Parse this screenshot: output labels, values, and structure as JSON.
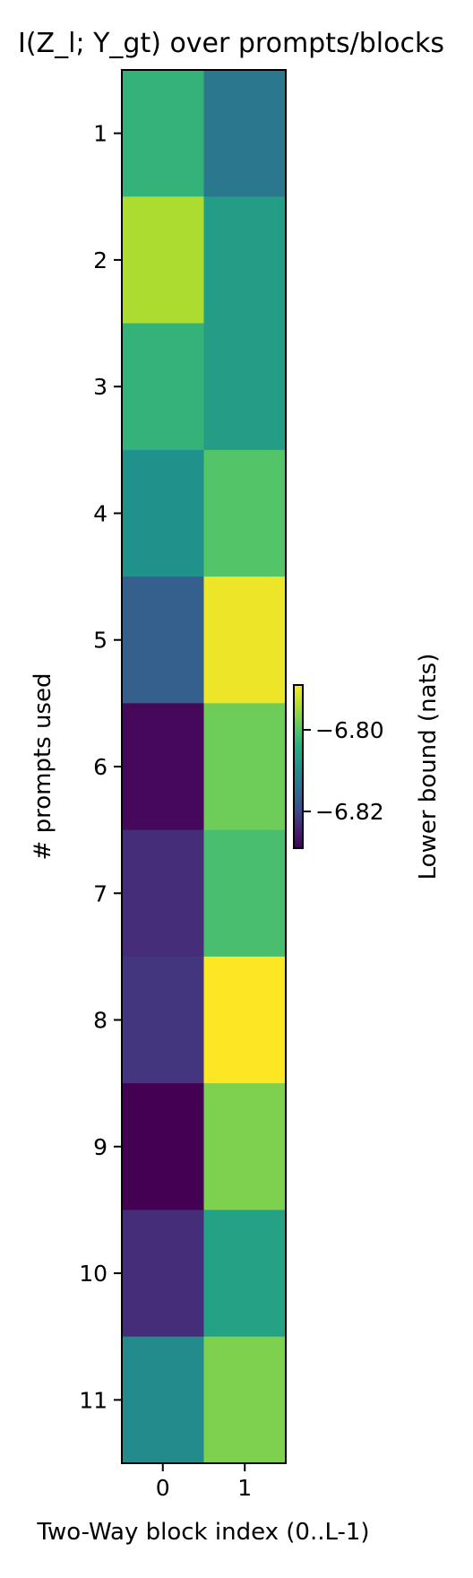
{
  "chart_data": {
    "type": "heatmap",
    "title": "I(Z_l; Y_gt) over prompts/blocks",
    "xlabel": "Two-Way block index (0..L-1)",
    "ylabel": "# prompts used",
    "x_categories": [
      "0",
      "1"
    ],
    "y_categories": [
      "1",
      "2",
      "3",
      "4",
      "5",
      "6",
      "7",
      "8",
      "9",
      "10",
      "11"
    ],
    "values": [
      [
        -6.803,
        -6.813
      ],
      [
        -6.794,
        -6.807
      ],
      [
        -6.803,
        -6.807
      ],
      [
        -6.809,
        -6.8
      ],
      [
        -6.817,
        -6.79
      ],
      [
        -6.828,
        -6.798
      ],
      [
        -6.823,
        -6.801
      ],
      [
        -6.822,
        -6.789
      ],
      [
        -6.829,
        -6.797
      ],
      [
        -6.823,
        -6.806
      ],
      [
        -6.81,
        -6.797
      ]
    ],
    "colorbar": {
      "label": "Lower bound (nats)",
      "min": -6.829,
      "max": -6.789,
      "ticks": [
        -6.82,
        -6.8
      ],
      "tick_labels": [
        "−6.82",
        "−6.80"
      ],
      "colormap": "viridis"
    },
    "grid": false
  }
}
